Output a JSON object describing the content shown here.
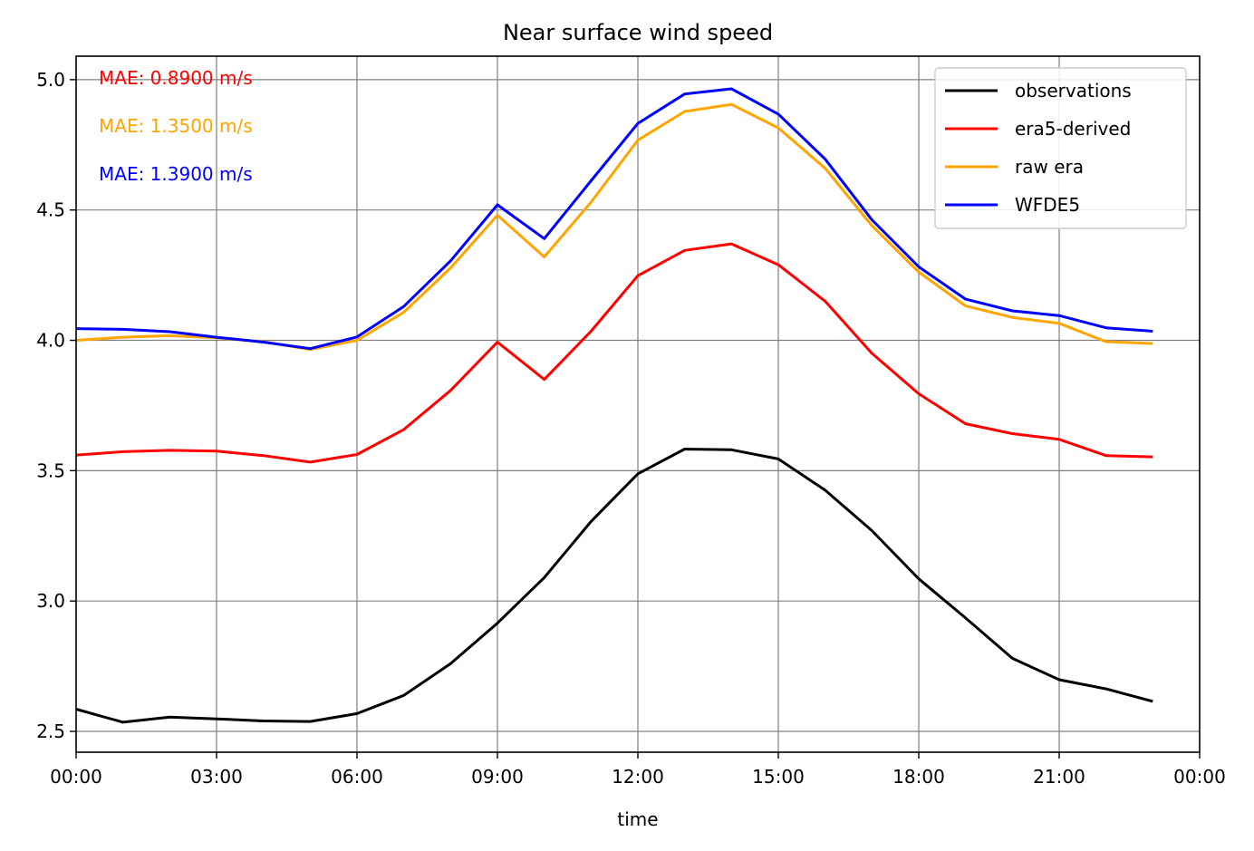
{
  "chart_data": {
    "type": "line",
    "title": "Near surface wind speed",
    "xlabel": "time",
    "ylabel": "",
    "x": [
      0,
      1,
      2,
      3,
      4,
      5,
      6,
      7,
      8,
      9,
      10,
      11,
      12,
      13,
      14,
      15,
      16,
      17,
      18,
      19,
      20,
      21,
      22,
      23
    ],
    "xlim": [
      0,
      24
    ],
    "ylim": [
      2.42,
      5.09
    ],
    "xticks": [
      {
        "value": 0,
        "label": "00:00"
      },
      {
        "value": 3,
        "label": "03:00"
      },
      {
        "value": 6,
        "label": "06:00"
      },
      {
        "value": 9,
        "label": "09:00"
      },
      {
        "value": 12,
        "label": "12:00"
      },
      {
        "value": 15,
        "label": "15:00"
      },
      {
        "value": 18,
        "label": "18:00"
      },
      {
        "value": 21,
        "label": "21:00"
      },
      {
        "value": 24,
        "label": "00:00"
      }
    ],
    "yticks": [
      {
        "value": 2.5,
        "label": "2.5"
      },
      {
        "value": 3.0,
        "label": "3.0"
      },
      {
        "value": 3.5,
        "label": "3.5"
      },
      {
        "value": 4.0,
        "label": "4.0"
      },
      {
        "value": 4.5,
        "label": "4.5"
      },
      {
        "value": 5.0,
        "label": "5.0"
      }
    ],
    "grid": true,
    "legend_position": "top-right",
    "series": [
      {
        "name": "observations",
        "color": "#000000",
        "values": [
          2.585,
          2.535,
          2.555,
          2.548,
          2.54,
          2.538,
          2.568,
          2.638,
          2.76,
          2.915,
          3.09,
          3.305,
          3.488,
          3.583,
          3.58,
          3.545,
          3.425,
          3.27,
          3.085,
          2.935,
          2.78,
          2.698,
          2.663,
          2.615
        ]
      },
      {
        "name": "era5-derived",
        "color": "#ff0000",
        "values": [
          3.56,
          3.573,
          3.578,
          3.575,
          3.558,
          3.533,
          3.562,
          3.658,
          3.808,
          3.993,
          3.85,
          4.035,
          4.248,
          4.345,
          4.37,
          4.29,
          4.15,
          3.95,
          3.795,
          3.68,
          3.642,
          3.62,
          3.558,
          3.553
        ]
      },
      {
        "name": "raw era",
        "color": "#ffa500",
        "values": [
          4.0,
          4.012,
          4.018,
          4.01,
          3.995,
          3.965,
          4.0,
          4.108,
          4.278,
          4.48,
          4.32,
          4.53,
          4.768,
          4.878,
          4.905,
          4.815,
          4.66,
          4.44,
          4.262,
          4.132,
          4.088,
          4.065,
          3.995,
          3.988
        ]
      },
      {
        "name": "WFDE5",
        "color": "#0000ff",
        "values": [
          4.045,
          4.042,
          4.033,
          4.012,
          3.993,
          3.968,
          4.013,
          4.13,
          4.305,
          4.52,
          4.39,
          4.612,
          4.832,
          4.945,
          4.965,
          4.868,
          4.695,
          4.462,
          4.282,
          4.158,
          4.113,
          4.095,
          4.048,
          4.035
        ]
      }
    ],
    "annotations": [
      {
        "text": "MAE: 0.8900 m/s",
        "color": "#ff0000"
      },
      {
        "text": "MAE: 1.3500 m/s",
        "color": "#ffa500"
      },
      {
        "text": "MAE: 1.3900 m/s",
        "color": "#0000ff"
      }
    ]
  }
}
